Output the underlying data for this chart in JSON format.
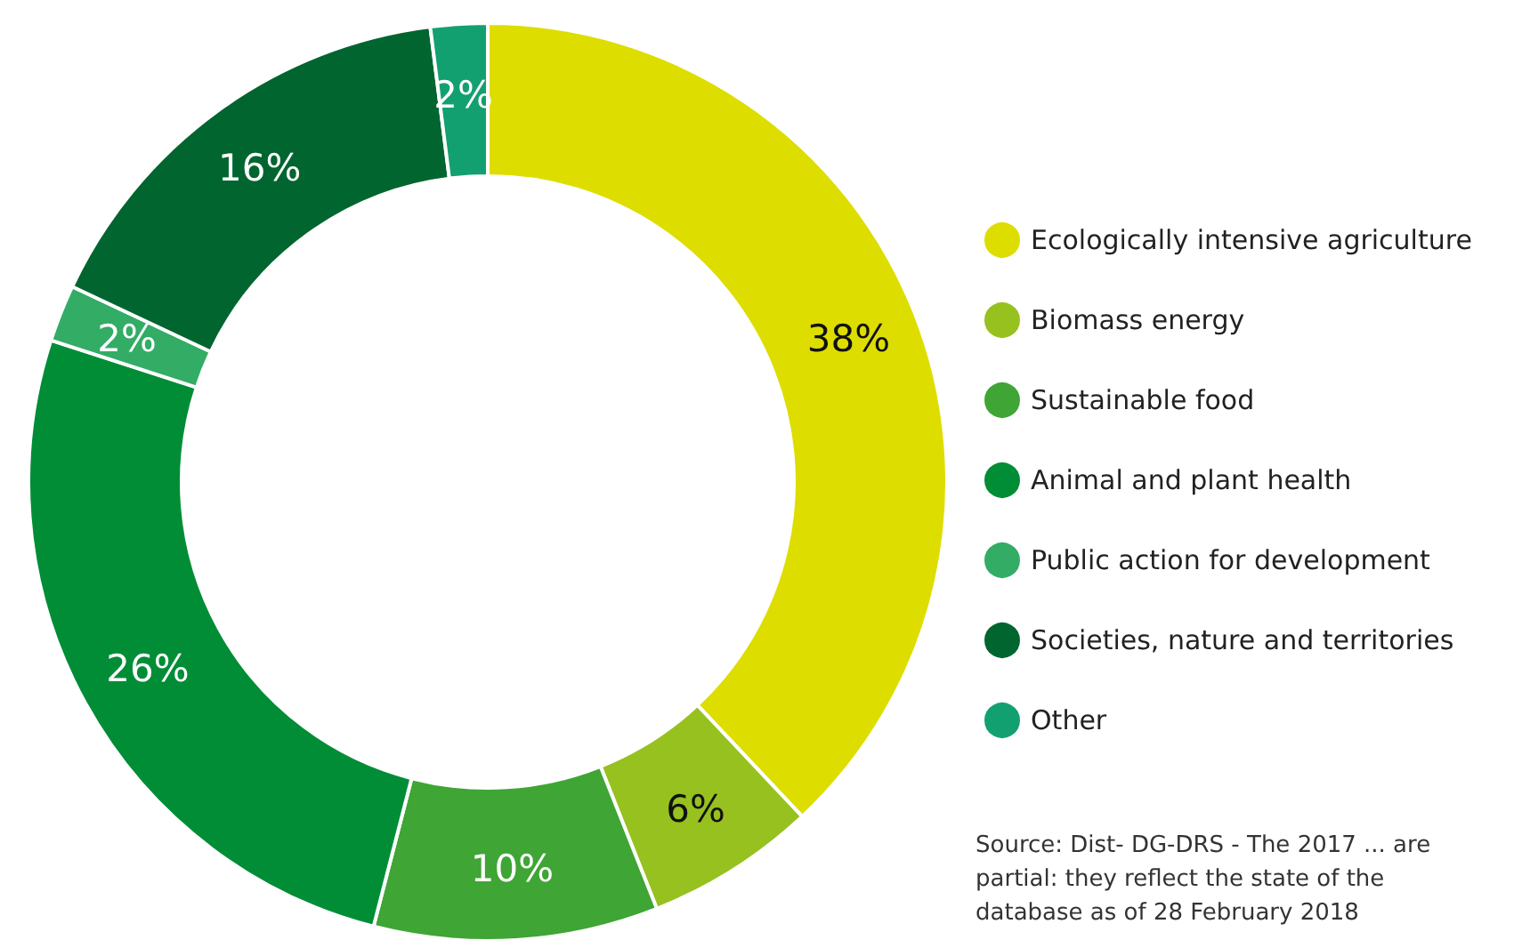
{
  "chart_data": {
    "type": "donut",
    "categories": [
      "Ecologically intensive agriculture",
      "Biomass energy",
      "Sustainable food",
      "Animal and plant health",
      "Public action for development",
      "Societies, nature and territories",
      "Other"
    ],
    "values": [
      38,
      6,
      10,
      26,
      2,
      16,
      2
    ],
    "colors": [
      "#dedd00",
      "#97c11f",
      "#3fa535",
      "#008d36",
      "#33ac66",
      "#00652f",
      "#13a070"
    ],
    "value_labels": [
      "38%",
      "6%",
      "10%",
      "26%",
      "2%",
      "16%",
      "2%"
    ],
    "legend": "right",
    "annotations": [
      "Source: Dist- DG-DRS - The 2017 ... are partial: they reflect the state of the database as of 28 February 2018"
    ]
  }
}
